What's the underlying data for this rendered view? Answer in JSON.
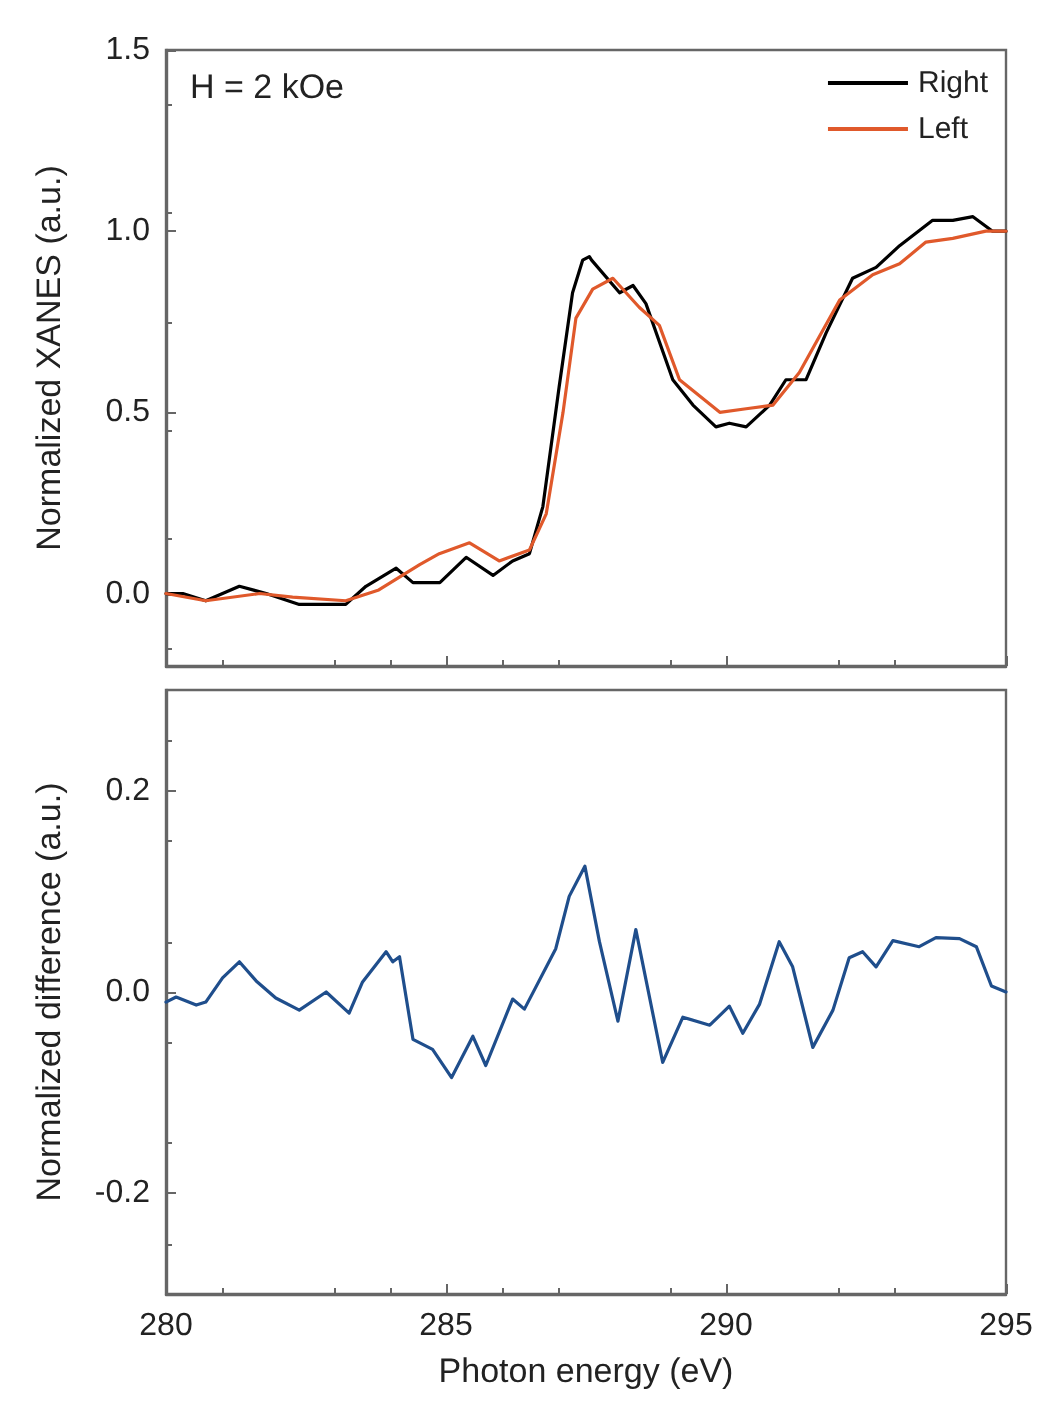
{
  "chart_data": [
    {
      "type": "line",
      "ylabel": "Normalized XANES (a.u.)",
      "annotations": [
        "H = 2 kOe"
      ],
      "xlim": [
        280,
        295
      ],
      "xticks": [
        280,
        285,
        290,
        295
      ],
      "ylim": [
        -0.2,
        1.5
      ],
      "yticks": [
        {
          "value": 0,
          "label": "0.0"
        },
        {
          "value": 0.5,
          "label": "0.5"
        },
        {
          "value": 1,
          "label": "1.0"
        },
        {
          "value": 1.5,
          "label": "1.5"
        }
      ],
      "tick_labels": "y",
      "grid": false,
      "legend": "top right",
      "marker": "none",
      "line_style": "solid",
      "series": [
        {
          "name": "Right",
          "color": "#000000",
          "x": [
            280,
            280.3,
            280.71,
            281.31,
            281.79,
            282.38,
            283.21,
            283.57,
            284.11,
            284.41,
            284.89,
            285.36,
            285.84,
            286.19,
            286.49,
            286.73,
            287.02,
            287.26,
            287.44,
            287.56,
            287.6,
            288.1,
            288.34,
            288.57,
            289.05,
            289.41,
            289.82,
            290.06,
            290.36,
            290.78,
            291.07,
            291.43,
            291.79,
            292.26,
            292.68,
            293.1,
            293.69,
            294.05,
            294.41,
            294.76,
            295
          ],
          "values": [
            0,
            0,
            -0.02,
            0.02,
            0,
            -0.03,
            -0.03,
            0.02,
            0.07,
            0.03,
            0.03,
            0.1,
            0.05,
            0.09,
            0.11,
            0.24,
            0.57,
            0.83,
            0.92,
            0.93,
            0.92,
            0.83,
            0.85,
            0.8,
            0.59,
            0.52,
            0.46,
            0.47,
            0.46,
            0.52,
            0.59,
            0.59,
            0.72,
            0.87,
            0.9,
            0.96,
            1.03,
            1.03,
            1.04,
            1,
            1
          ]
        },
        {
          "name": "Left",
          "color": "#e0592b",
          "x": [
            280,
            280.71,
            281.67,
            282.26,
            283.21,
            283.8,
            284.53,
            284.88,
            285.42,
            285.95,
            286.49,
            286.79,
            287.09,
            287.32,
            287.62,
            287.98,
            288.45,
            288.81,
            289.17,
            289.89,
            290.36,
            290.84,
            291.31,
            292.03,
            292.62,
            293.1,
            293.57,
            294.05,
            294.64,
            295
          ],
          "values": [
            0,
            -0.02,
            0,
            -0.01,
            -0.02,
            0.01,
            0.08,
            0.11,
            0.14,
            0.09,
            0.12,
            0.22,
            0.5,
            0.76,
            0.84,
            0.87,
            0.79,
            0.74,
            0.59,
            0.5,
            0.51,
            0.52,
            0.61,
            0.81,
            0.88,
            0.91,
            0.97,
            0.98,
            1,
            1
          ]
        }
      ]
    },
    {
      "type": "line",
      "xlabel": "Photon energy (eV)",
      "ylabel": "Normalized difference (a.u.)",
      "xlim": [
        280,
        295
      ],
      "xticks": [
        280,
        285,
        290,
        295
      ],
      "ylim": [
        -0.3,
        0.3
      ],
      "yticks": [
        {
          "value": -0.2,
          "label": "-0.2"
        },
        {
          "value": 0,
          "label": "0.0"
        },
        {
          "value": 0.2,
          "label": "0.2"
        }
      ],
      "grid": false,
      "legend": false,
      "marker": "none",
      "line_style": "solid",
      "series": [
        {
          "color": "#1f4e8c",
          "x": [
            280,
            280.18,
            280.54,
            280.71,
            281.01,
            281.31,
            281.61,
            281.96,
            282.38,
            282.86,
            283.27,
            283.51,
            283.93,
            284.05,
            284.17,
            284.41,
            284.76,
            285.1,
            285.48,
            285.71,
            286.19,
            286.4,
            286.96,
            287.2,
            287.48,
            287.74,
            288.07,
            288.39,
            288.87,
            289.23,
            289.71,
            290.06,
            290.3,
            290.6,
            290.95,
            291.19,
            291.55,
            291.91,
            292.2,
            292.44,
            292.68,
            292.98,
            293.45,
            293.75,
            294.17,
            294.47,
            294.74,
            295
          ],
          "values": [
            -0.01,
            -0.005,
            -0.013,
            -0.01,
            0.014,
            0.03,
            0.011,
            -0.006,
            -0.018,
            0,
            -0.021,
            0.01,
            0.04,
            0.03,
            0.035,
            -0.047,
            -0.057,
            -0.085,
            -0.044,
            -0.073,
            -0.007,
            -0.017,
            0.043,
            0.095,
            0.125,
            0.05,
            -0.029,
            0.062,
            -0.07,
            -0.025,
            -0.033,
            -0.014,
            -0.041,
            -0.012,
            0.05,
            0.025,
            -0.055,
            -0.018,
            0.034,
            0.04,
            0.025,
            0.051,
            0.045,
            0.054,
            0.053,
            0.045,
            0.006,
            0
          ]
        }
      ]
    }
  ]
}
